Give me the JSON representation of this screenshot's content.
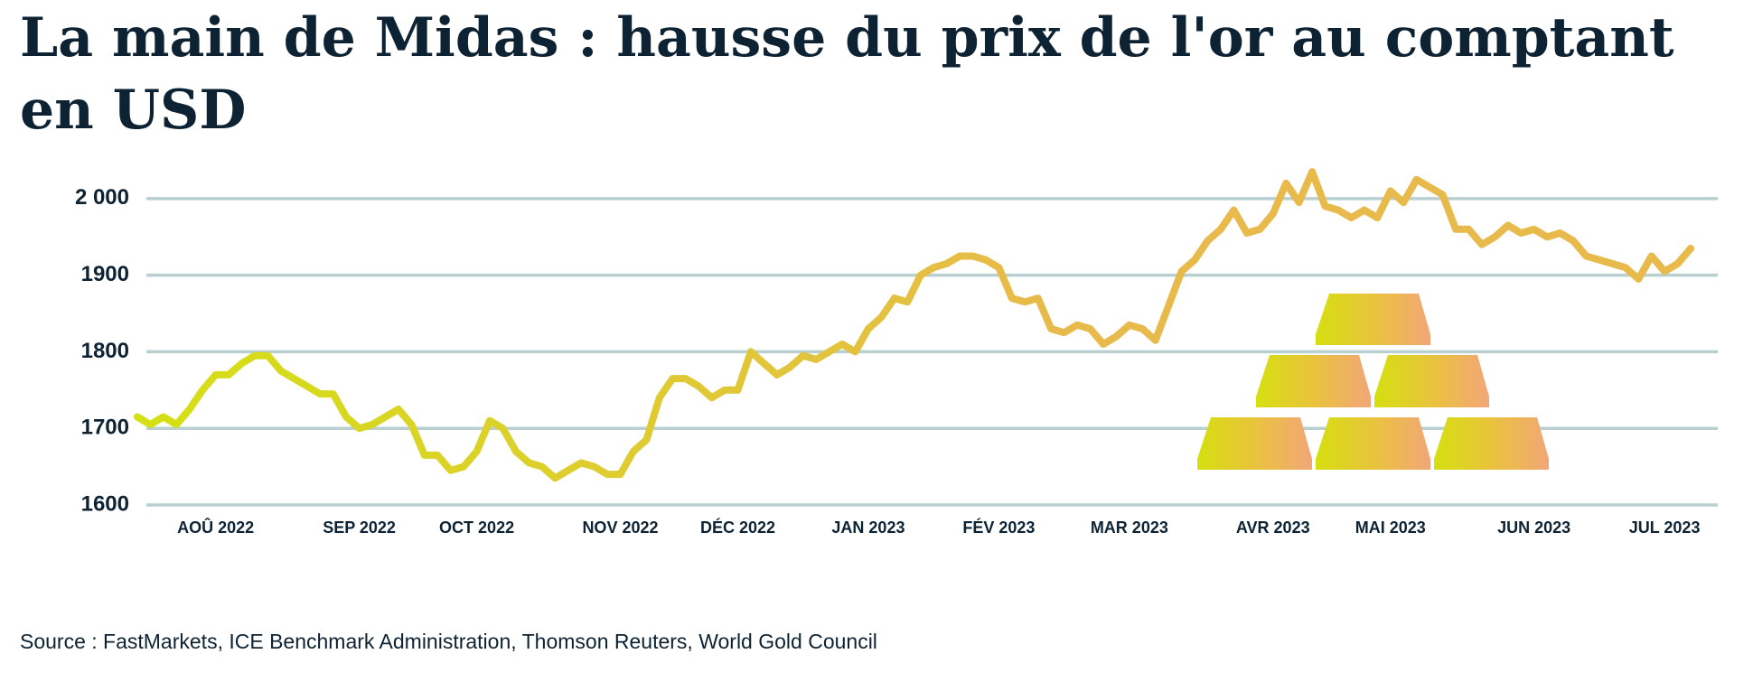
{
  "chart_data": {
    "type": "line",
    "title_lines": [
      "La main de Midas : hausse du prix de l'or au comptant",
      "en USD"
    ],
    "source": "Source : FastMarkets, ICE Benchmark Administration, Thomson Reuters, World Gold Council",
    "categories": [
      null,
      null,
      null,
      null,
      null,
      null,
      "AOÛ 2022",
      null,
      null,
      null,
      null,
      null,
      null,
      null,
      null,
      null,
      null,
      "SEP 2022",
      null,
      null,
      null,
      null,
      null,
      null,
      null,
      null,
      "OCT 2022",
      null,
      null,
      null,
      null,
      null,
      null,
      null,
      null,
      null,
      null,
      "NOV 2022",
      null,
      null,
      null,
      null,
      null,
      null,
      null,
      null,
      "DÉC 2022",
      null,
      null,
      null,
      null,
      null,
      null,
      null,
      null,
      null,
      "JAN 2023",
      null,
      null,
      null,
      null,
      null,
      null,
      null,
      null,
      null,
      "FÉV 2023",
      null,
      null,
      null,
      null,
      null,
      null,
      null,
      null,
      null,
      "MAR 2023",
      null,
      null,
      null,
      null,
      null,
      null,
      null,
      null,
      null,
      null,
      "AVR 2023",
      null,
      null,
      null,
      null,
      null,
      null,
      null,
      null,
      "MAI 2023",
      null,
      null,
      null,
      null,
      null,
      null,
      null,
      null,
      null,
      null,
      "JUN 2023",
      null,
      null,
      null,
      null,
      null,
      null,
      null,
      null,
      null,
      "JUL 2023",
      null,
      null
    ],
    "series": [
      {
        "colors": [
          "#d4e014",
          "#e8b94b"
        ],
        "values": [
          1715,
          1705,
          1715,
          1705,
          1725,
          1750,
          1770,
          1770,
          1785,
          1795,
          1795,
          1775,
          1765,
          1755,
          1745,
          1745,
          1715,
          1700,
          1705,
          1715,
          1725,
          1705,
          1665,
          1665,
          1645,
          1650,
          1670,
          1710,
          1700,
          1670,
          1655,
          1650,
          1635,
          1645,
          1655,
          1650,
          1640,
          1640,
          1670,
          1685,
          1740,
          1765,
          1765,
          1755,
          1740,
          1750,
          1750,
          1800,
          1785,
          1770,
          1780,
          1795,
          1790,
          1800,
          1810,
          1800,
          1830,
          1845,
          1870,
          1865,
          1900,
          1910,
          1915,
          1925,
          1925,
          1920,
          1910,
          1870,
          1865,
          1870,
          1830,
          1825,
          1835,
          1830,
          1810,
          1820,
          1835,
          1830,
          1815,
          1860,
          1905,
          1920,
          1945,
          1960,
          1985,
          1955,
          1960,
          1980,
          2020,
          1995,
          2035,
          1990,
          1985,
          1975,
          1985,
          1975,
          2010,
          1995,
          2025,
          2015,
          2005,
          1960,
          1960,
          1940,
          1950,
          1965,
          1955,
          1960,
          1950,
          1955,
          1945,
          1925,
          1920,
          1915,
          1910,
          1895,
          1925,
          1905,
          1915,
          1935
        ]
      }
    ],
    "ylim": [
      1600,
      2060
    ],
    "yticks": [
      1600,
      1700,
      1800,
      1900,
      {
        "value": 2000,
        "label": "2 000"
      }
    ],
    "grid": true
  }
}
